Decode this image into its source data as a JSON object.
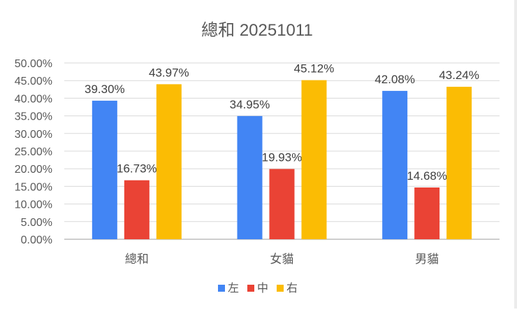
{
  "chart_data": {
    "type": "bar",
    "title": "總和 20251011",
    "categories": [
      "總和",
      "女貓",
      "男貓"
    ],
    "series": [
      {
        "name": "左",
        "values": [
          39.3,
          34.95,
          42.08
        ],
        "labels": [
          "39.30%",
          "34.95%",
          "42.08%"
        ],
        "color": "#4285F4"
      },
      {
        "name": "中",
        "values": [
          16.73,
          19.93,
          14.68
        ],
        "labels": [
          "16.73%",
          "19.93%",
          "14.68%"
        ],
        "color": "#EA4335"
      },
      {
        "name": "右",
        "values": [
          43.97,
          45.12,
          43.24
        ],
        "labels": [
          "43.97%",
          "45.12%",
          "43.24%"
        ],
        "color": "#FBBC04"
      }
    ],
    "ylim": [
      0,
      50
    ],
    "yticks": [
      "0.00%",
      "5.00%",
      "10.00%",
      "15.00%",
      "20.00%",
      "25.00%",
      "30.00%",
      "35.00%",
      "40.00%",
      "45.00%",
      "50.00%"
    ],
    "grid": true,
    "legend": "bottom"
  }
}
